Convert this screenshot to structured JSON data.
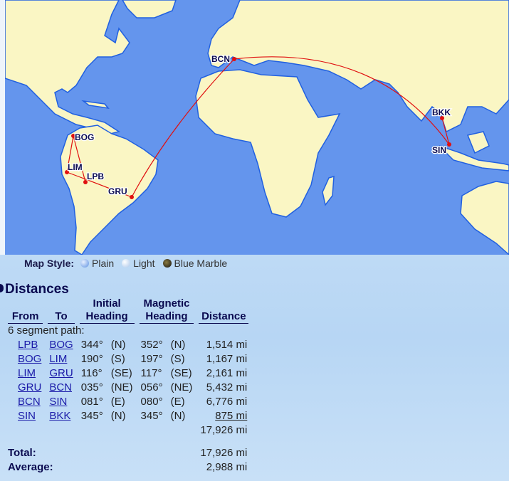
{
  "map": {
    "colors": {
      "ocean": "#6495ed",
      "land": "#faf6c4",
      "coast": "#2160e0",
      "route": "#e01010",
      "border": "#a09a20"
    },
    "airports": [
      {
        "code": "BOG"
      },
      {
        "code": "LIM"
      },
      {
        "code": "LPB"
      },
      {
        "code": "GRU"
      },
      {
        "code": "BCN"
      },
      {
        "code": "BKK"
      },
      {
        "code": "SIN"
      }
    ]
  },
  "map_style": {
    "label": "Map Style:",
    "options": [
      {
        "label": "Plain",
        "icon": "globe-plain-icon"
      },
      {
        "label": "Light",
        "icon": "globe-light-icon"
      },
      {
        "label": "Blue Marble",
        "icon": "globe-blue-marble-icon"
      }
    ]
  },
  "distances": {
    "title": "Distances",
    "headers": {
      "from": "From",
      "to": "To",
      "initial_1": "Initial",
      "initial_2": "Heading",
      "magnetic_1": "Magnetic",
      "magnetic_2": "Heading",
      "distance": "Distance"
    },
    "path_label": "6 segment path:",
    "rows": [
      {
        "from": "LPB",
        "to": "BOG",
        "ih": "344°",
        "ihd": "(N)",
        "mh": "352°",
        "mhd": "(N)",
        "dist": "1,514 mi"
      },
      {
        "from": "BOG",
        "to": "LIM",
        "ih": "190°",
        "ihd": "(S)",
        "mh": "197°",
        "mhd": "(S)",
        "dist": "1,167 mi"
      },
      {
        "from": "LIM",
        "to": "GRU",
        "ih": "116°",
        "ihd": "(SE)",
        "mh": "117°",
        "mhd": "(SE)",
        "dist": "2,161 mi"
      },
      {
        "from": "GRU",
        "to": "BCN",
        "ih": "035°",
        "ihd": "(NE)",
        "mh": "056°",
        "mhd": "(NE)",
        "dist": "5,432 mi"
      },
      {
        "from": "BCN",
        "to": "SIN",
        "ih": "081°",
        "ihd": "(E)",
        "mh": "080°",
        "mhd": "(E)",
        "dist": "6,776 mi"
      },
      {
        "from": "SIN",
        "to": "BKK",
        "ih": "345°",
        "ihd": "(N)",
        "mh": "345°",
        "mhd": "(N)",
        "dist": "875 mi"
      }
    ],
    "subtotal": "17,926 mi",
    "total_label": "Total:",
    "total": "17,926 mi",
    "average_label": "Average:",
    "average": "2,988 mi"
  }
}
